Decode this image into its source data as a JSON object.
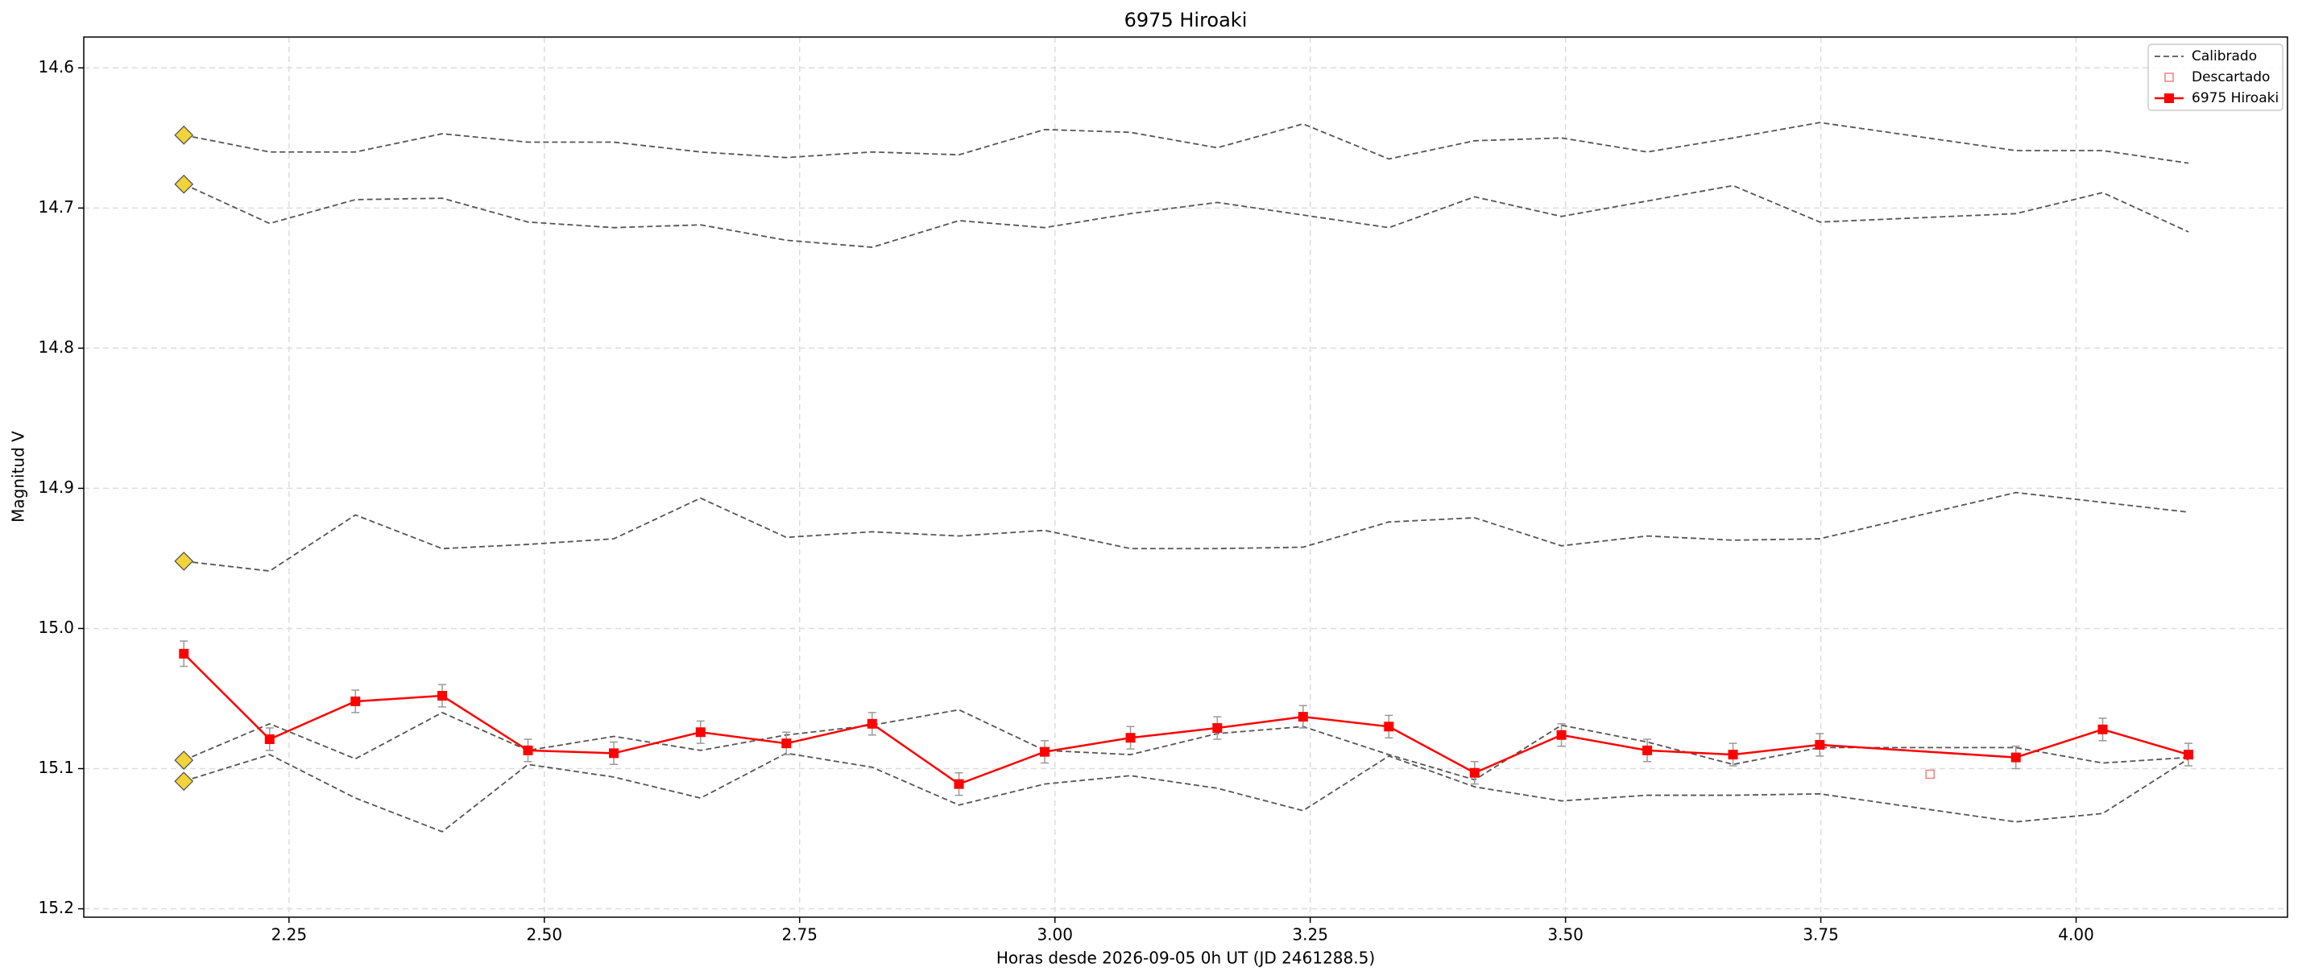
{
  "chart_data": {
    "type": "line",
    "title": "6975 Hiroaki",
    "x_label": "Horas desde 2026-09-05 0h UT (JD 2461288.5)",
    "y_label": "Magnitud V",
    "xlim": [
      2.049,
      4.207
    ],
    "ylim": [
      14.578,
      15.206
    ],
    "invert_y": true,
    "grid": true,
    "legend": "upper right",
    "xticks": [
      2.25,
      {
        "value": 2.5,
        "label": "2.50"
      },
      2.75,
      {
        "value": 3,
        "label": "3.00"
      },
      3.25,
      {
        "value": 3.5,
        "label": "3.50"
      },
      3.75,
      {
        "value": 4,
        "label": "4.00"
      }
    ],
    "yticks": [
      14.6,
      14.7,
      14.8,
      14.9,
      {
        "value": 15,
        "label": "15.0"
      },
      15.1,
      15.2
    ],
    "x": [
      2.147,
      2.231,
      2.315,
      2.4,
      2.484,
      2.568,
      2.653,
      2.737,
      2.821,
      2.906,
      2.99,
      3.074,
      3.159,
      3.243,
      3.327,
      3.411,
      3.496,
      3.58,
      3.664,
      3.749,
      3.941,
      4.026,
      4.11
    ],
    "calibrated": {
      "name": "Calibrado",
      "color": "#555555",
      "start_marker_color": "#f2d43a",
      "lines": [
        [
          14.648,
          14.66,
          14.66,
          14.647,
          14.653,
          14.653,
          14.66,
          14.664,
          14.66,
          14.662,
          14.644,
          14.646,
          14.657,
          14.64,
          14.665,
          14.652,
          14.65,
          14.66,
          14.65,
          14.639,
          14.659,
          14.659,
          14.668
        ],
        [
          14.683,
          14.711,
          14.694,
          14.693,
          14.71,
          14.714,
          14.712,
          14.723,
          14.728,
          14.709,
          14.714,
          14.704,
          14.696,
          14.705,
          14.714,
          14.692,
          14.706,
          14.695,
          14.684,
          14.71,
          14.704,
          14.689,
          14.717
        ],
        [
          14.952,
          14.959,
          14.919,
          14.943,
          14.94,
          14.936,
          14.907,
          14.935,
          14.931,
          14.934,
          14.93,
          14.943,
          14.943,
          14.942,
          14.924,
          14.921,
          14.941,
          14.934,
          14.937,
          14.936,
          14.903,
          14.91,
          14.917
        ],
        [
          15.094,
          15.068,
          15.093,
          15.06,
          15.087,
          15.077,
          15.087,
          15.076,
          15.069,
          15.058,
          15.087,
          15.09,
          15.075,
          15.07,
          15.09,
          15.108,
          15.069,
          15.081,
          15.097,
          15.085,
          15.085,
          15.096,
          15.092
        ],
        [
          15.109,
          15.09,
          15.121,
          15.145,
          15.097,
          15.106,
          15.121,
          15.089,
          15.099,
          15.126,
          15.111,
          15.105,
          15.114,
          15.13,
          15.091,
          15.113,
          15.123,
          15.119,
          15.119,
          15.118,
          15.138,
          15.132,
          15.093
        ]
      ]
    },
    "discarded": {
      "name": "Descartado",
      "color": "#f08080",
      "x": [
        3.857
      ],
      "values": [
        15.104
      ]
    },
    "target": {
      "name": "6975 Hiroaki",
      "color": "#ff0000",
      "error_color": "#999999",
      "values": [
        15.018,
        15.079,
        15.052,
        15.048,
        15.087,
        15.089,
        15.074,
        15.082,
        15.068,
        15.111,
        15.088,
        15.078,
        15.071,
        15.063,
        15.07,
        15.103,
        15.076,
        15.087,
        15.09,
        15.083,
        15.092,
        15.072,
        15.09
      ],
      "errors": [
        0.009,
        0.008,
        0.008,
        0.008,
        0.008,
        0.008,
        0.008,
        0.008,
        0.008,
        0.008,
        0.008,
        0.008,
        0.008,
        0.008,
        0.008,
        0.008,
        0.008,
        0.008,
        0.008,
        0.008,
        0.008,
        0.008,
        0.008
      ]
    }
  }
}
